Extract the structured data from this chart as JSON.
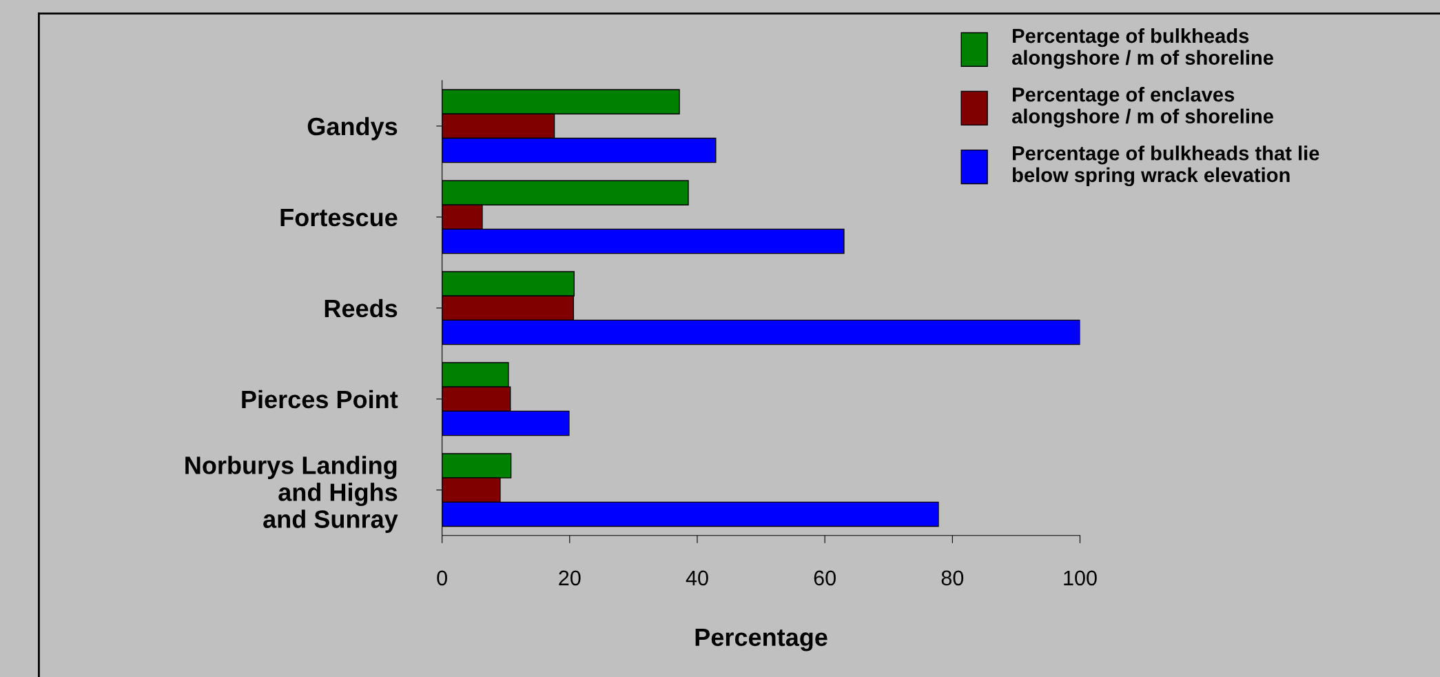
{
  "chart_data": {
    "type": "bar",
    "orientation": "horizontal",
    "xlabel": "Percentage",
    "categories": [
      "Gandys",
      "Fortescue",
      "Reeds",
      "Pierces Point",
      "Norburys Landing\nand Highs\nand Sunray"
    ],
    "series": [
      {
        "name": "Percentage of bulkheads\nalongshore / m of shoreline",
        "color": "#008000",
        "values": [
          37.2,
          38.6,
          20.7,
          10.4,
          10.8
        ]
      },
      {
        "name": "Percentage of enclaves\nalongshore / m of shoreline",
        "color": "#800000",
        "values": [
          17.6,
          6.3,
          20.6,
          10.7,
          9.1
        ]
      },
      {
        "name": "Percentage of bulkheads that lie\nbelow spring wrack elevation",
        "color": "#0000ff",
        "values": [
          42.9,
          63.0,
          100,
          19.9,
          77.8
        ]
      }
    ],
    "xlim": [
      0,
      100
    ],
    "xticks": [
      0,
      20,
      40,
      60,
      80,
      100
    ],
    "grid": false,
    "legend": "top right"
  }
}
